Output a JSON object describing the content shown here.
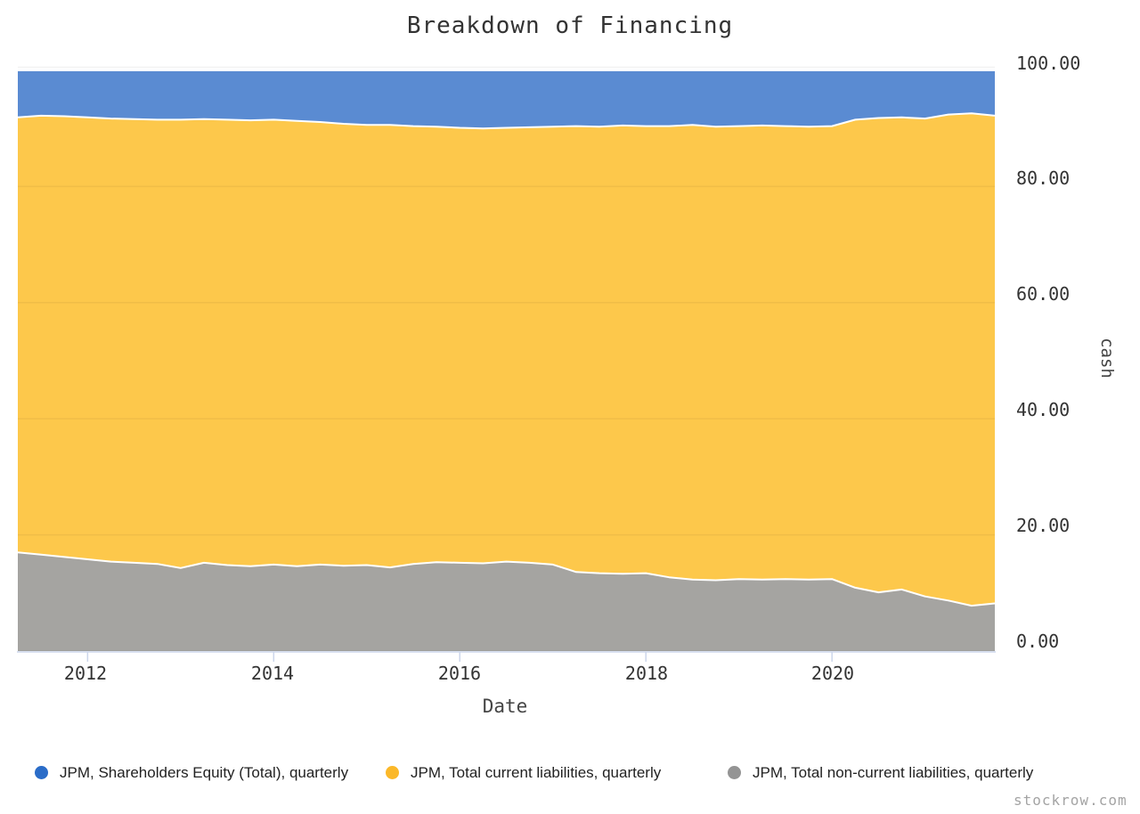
{
  "branding": {
    "watermark": "stockrow.com"
  },
  "chart_data": {
    "type": "area",
    "stacked": true,
    "title": "Breakdown of Financing",
    "xlabel": "Date",
    "ylabel": "cash",
    "ylim": [
      0,
      100
    ],
    "xlim": [
      2011.25,
      2021.75
    ],
    "grid": true,
    "legend_position": "bottom",
    "x_tick_labels": [
      "2012",
      "2014",
      "2016",
      "2018",
      "2020"
    ],
    "x_tick_years": [
      2012,
      2014,
      2016,
      2018,
      2020
    ],
    "y_tick_labels": [
      "100.00",
      "80.00",
      "60.00",
      "40.00",
      "20.00",
      "0.00"
    ],
    "y_tick_values": [
      100,
      80,
      60,
      40,
      20,
      0
    ],
    "x": [
      2011.25,
      2011.5,
      2011.75,
      2012.0,
      2012.25,
      2012.5,
      2012.75,
      2013.0,
      2013.25,
      2013.5,
      2013.75,
      2014.0,
      2014.25,
      2014.5,
      2014.75,
      2015.0,
      2015.25,
      2015.5,
      2015.75,
      2016.0,
      2016.25,
      2016.5,
      2016.75,
      2017.0,
      2017.25,
      2017.5,
      2017.75,
      2018.0,
      2018.25,
      2018.5,
      2018.75,
      2019.0,
      2019.25,
      2019.5,
      2019.75,
      2020.0,
      2020.25,
      2020.5,
      2020.75,
      2021.0,
      2021.25,
      2021.5,
      2021.75
    ],
    "series": [
      {
        "name": "JPM, Shareholders Equity (Total), quarterly",
        "key": "equity",
        "area_color": "#5a8bd2",
        "dot_color": "#2a6cc8",
        "stack_order": 3,
        "values": [
          8.1,
          7.8,
          7.9,
          8.1,
          8.3,
          8.4,
          8.5,
          8.5,
          8.4,
          8.5,
          8.6,
          8.5,
          8.7,
          8.9,
          9.2,
          9.4,
          9.4,
          9.6,
          9.7,
          9.9,
          10.0,
          9.9,
          9.8,
          9.7,
          9.6,
          9.7,
          9.5,
          9.6,
          9.6,
          9.4,
          9.7,
          9.6,
          9.5,
          9.6,
          9.7,
          9.6,
          8.5,
          8.2,
          8.1,
          8.3,
          7.6,
          7.4,
          7.8
        ]
      },
      {
        "name": "JPM, Total current liabilities, quarterly",
        "key": "current",
        "area_color": "#fdc84b",
        "dot_color": "#fbb829",
        "stack_order": 2,
        "values": [
          74.9,
          75.6,
          75.9,
          76.1,
          76.3,
          76.4,
          76.5,
          77.2,
          76.4,
          76.7,
          76.8,
          76.6,
          76.7,
          76.2,
          76.1,
          75.8,
          76.2,
          75.4,
          75.0,
          74.9,
          74.9,
          74.7,
          75.0,
          75.4,
          76.8,
          76.9,
          77.2,
          77.0,
          77.7,
          78.3,
          78.1,
          78.0,
          78.2,
          78.0,
          78.0,
          78.0,
          80.6,
          81.7,
          81.3,
          82.3,
          83.7,
          84.8,
          84.0
        ]
      },
      {
        "name": "JPM, Total non-current liabilities, quarterly",
        "key": "noncurrent",
        "area_color": "#a5a4a1",
        "dot_color": "#949494",
        "stack_order": 1,
        "values": [
          17.0,
          16.6,
          16.2,
          15.8,
          15.4,
          15.2,
          15.0,
          14.3,
          15.2,
          14.8,
          14.6,
          14.9,
          14.6,
          14.9,
          14.7,
          14.8,
          14.4,
          15.0,
          15.3,
          15.2,
          15.1,
          15.4,
          15.2,
          14.9,
          13.6,
          13.4,
          13.3,
          13.4,
          12.7,
          12.3,
          12.2,
          12.4,
          12.3,
          12.4,
          12.3,
          12.4,
          10.9,
          10.1,
          10.6,
          9.4,
          8.7,
          7.8,
          8.2
        ]
      }
    ],
    "style": {
      "gridline_color": "rgba(0,0,0,0.05)",
      "axis_line_color": "#ccd6eb",
      "boundary_line_color": "#ffffff"
    }
  }
}
